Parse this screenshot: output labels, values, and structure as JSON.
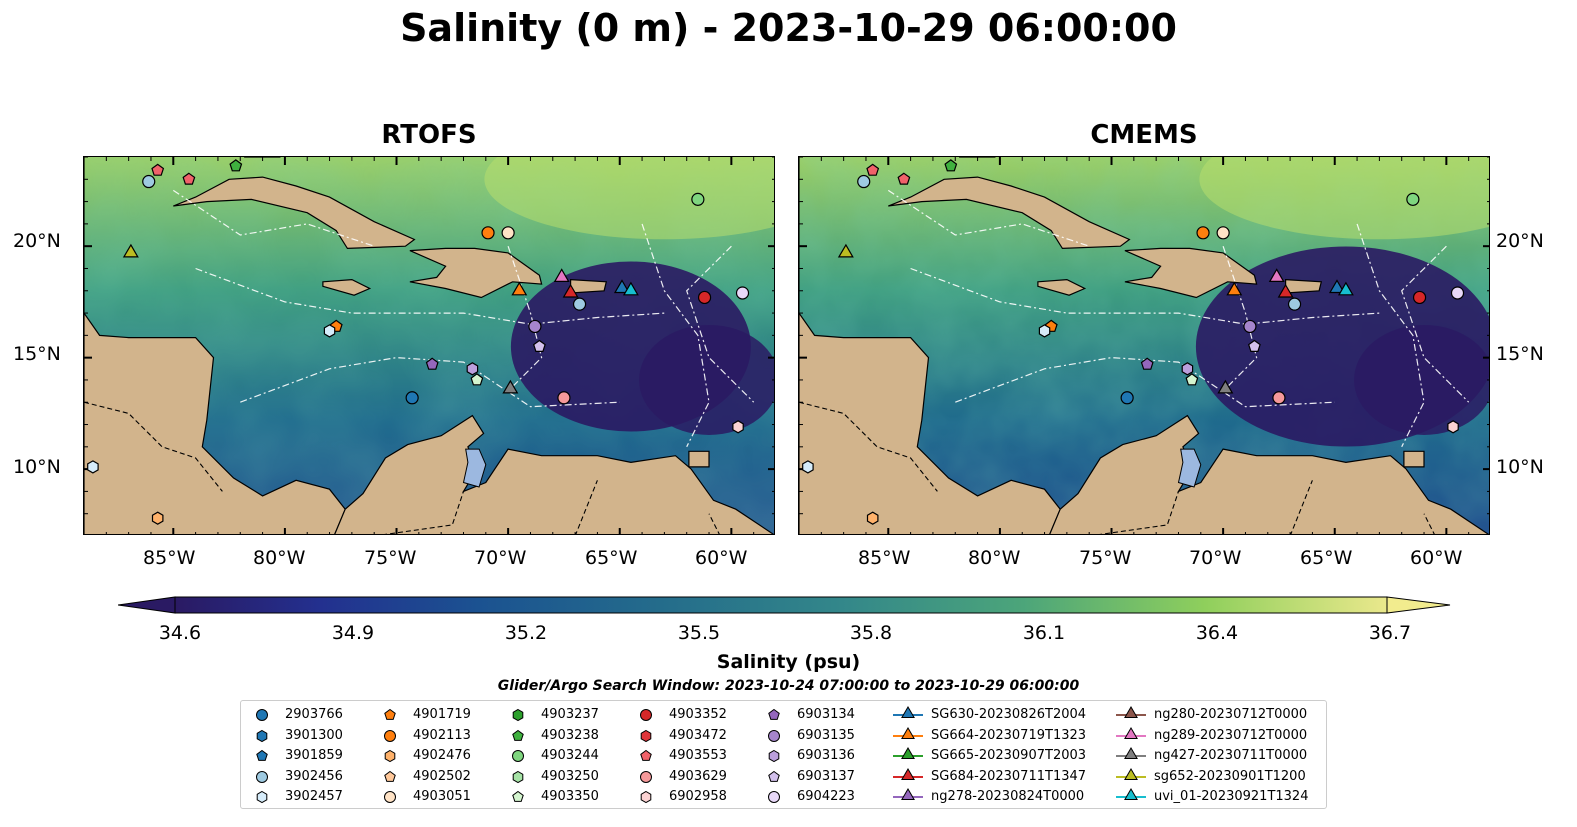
{
  "suptitle": "Salinity (0 m) - 2023-10-29 06:00:00",
  "panels": [
    {
      "title": "RTOFS"
    },
    {
      "title": "CMEMS"
    }
  ],
  "lon_ticks": [
    "85°W",
    "80°W",
    "75°W",
    "70°W",
    "65°W",
    "60°W"
  ],
  "lat_ticks": [
    "20°N",
    "15°N",
    "10°N"
  ],
  "map_extent": {
    "lon": [
      -89,
      -58
    ],
    "lat": [
      7,
      24
    ]
  },
  "colorbar": {
    "label": "Salinity (psu)",
    "ticks": [
      "34.6",
      "34.9",
      "35.2",
      "35.5",
      "35.8",
      "36.1",
      "36.4",
      "36.7"
    ],
    "range": [
      34.6,
      36.7
    ],
    "cmap": "haline"
  },
  "search_window": "Glider/Argo Search Window: 2023-10-24 07:00:00 to 2023-10-29 06:00:00",
  "legend": {
    "columns": [
      [
        {
          "id": "2903766",
          "marker": "circle",
          "color": "#1f77b4"
        },
        {
          "id": "3901300",
          "marker": "hexagon",
          "color": "#1f77b4"
        },
        {
          "id": "3901859",
          "marker": "pentagon",
          "color": "#1f77b4"
        },
        {
          "id": "3902456",
          "marker": "circle",
          "color": "#9ecae1"
        },
        {
          "id": "3902457",
          "marker": "hexagon",
          "color": "#d6ecfa"
        }
      ],
      [
        {
          "id": "4901719",
          "marker": "pentagon",
          "color": "#ff7f0e"
        },
        {
          "id": "4902113",
          "marker": "circle",
          "color": "#ff7f0e"
        },
        {
          "id": "4902476",
          "marker": "hexagon",
          "color": "#ffb26b"
        },
        {
          "id": "4902502",
          "marker": "pentagon",
          "color": "#ffc89a"
        },
        {
          "id": "4903051",
          "marker": "circle",
          "color": "#ffe3c6"
        }
      ],
      [
        {
          "id": "4903237",
          "marker": "hexagon",
          "color": "#2ca02c"
        },
        {
          "id": "4903238",
          "marker": "pentagon",
          "color": "#3fb13f"
        },
        {
          "id": "4903244",
          "marker": "circle",
          "color": "#7fd67f"
        },
        {
          "id": "4903250",
          "marker": "hexagon",
          "color": "#a6e3a6"
        },
        {
          "id": "4903350",
          "marker": "pentagon",
          "color": "#d4f5cf"
        }
      ],
      [
        {
          "id": "4903352",
          "marker": "circle",
          "color": "#d62728"
        },
        {
          "id": "4903472",
          "marker": "hexagon",
          "color": "#e0353a"
        },
        {
          "id": "4903553",
          "marker": "pentagon",
          "color": "#f0626a"
        },
        {
          "id": "4903629",
          "marker": "circle",
          "color": "#f5999a"
        },
        {
          "id": "6902958",
          "marker": "hexagon",
          "color": "#fbd2d2"
        }
      ],
      [
        {
          "id": "6903134",
          "marker": "pentagon",
          "color": "#9467bd"
        },
        {
          "id": "6903135",
          "marker": "circle",
          "color": "#a685cc"
        },
        {
          "id": "6903136",
          "marker": "hexagon",
          "color": "#bb9fdc"
        },
        {
          "id": "6903137",
          "marker": "pentagon",
          "color": "#d3c0ec"
        },
        {
          "id": "6904223",
          "marker": "circle",
          "color": "#e8d8f8"
        }
      ],
      [
        {
          "id": "SG630-20230826T2004",
          "marker": "triangle",
          "color": "#1f77b4"
        },
        {
          "id": "SG664-20230719T1323",
          "marker": "triangle",
          "color": "#ff7f0e"
        },
        {
          "id": "SG665-20230907T2003",
          "marker": "triangle",
          "color": "#2ca02c"
        },
        {
          "id": "SG684-20230711T1347",
          "marker": "triangle",
          "color": "#d62728"
        },
        {
          "id": "ng278-20230824T0000",
          "marker": "triangle",
          "color": "#9467bd"
        }
      ],
      [
        {
          "id": "ng280-20230712T0000",
          "marker": "triangle",
          "color": "#8c564b"
        },
        {
          "id": "ng289-20230712T0000",
          "marker": "triangle",
          "color": "#e377c2"
        },
        {
          "id": "ng427-20230711T0000",
          "marker": "triangle",
          "color": "#7f7f7f"
        },
        {
          "id": "sg652-20230901T1200",
          "marker": "triangle",
          "color": "#bcbd22"
        },
        {
          "id": "uvi_01-20230921T1324",
          "marker": "triangle",
          "color": "#17becf"
        }
      ]
    ]
  },
  "platforms": [
    {
      "id": "4903553",
      "lon": -85.7,
      "lat": 23.4
    },
    {
      "id": "3902456",
      "lon": -86.1,
      "lat": 22.9
    },
    {
      "id": "4903553",
      "lon": -84.3,
      "lat": 23.0
    },
    {
      "id": "4903238",
      "lon": -82.2,
      "lat": 23.6
    },
    {
      "id": "4903244",
      "lon": -61.5,
      "lat": 22.1
    },
    {
      "id": "sg652-20230901T1200",
      "lon": -86.9,
      "lat": 19.7
    },
    {
      "id": "4902113",
      "lon": -70.9,
      "lat": 20.6
    },
    {
      "id": "4903051",
      "lon": -70.0,
      "lat": 20.6
    },
    {
      "id": "ng289-20230712T0000",
      "lon": -67.6,
      "lat": 18.6
    },
    {
      "id": "SG664-20230719T1323",
      "lon": -69.5,
      "lat": 18.0
    },
    {
      "id": "SG684-20230711T1347",
      "lon": -67.2,
      "lat": 17.9
    },
    {
      "id": "3902456",
      "lon": -66.8,
      "lat": 17.4
    },
    {
      "id": "SG630-20230826T2004",
      "lon": -64.9,
      "lat": 18.1
    },
    {
      "id": "uvi_01-20230921T1324",
      "lon": -64.5,
      "lat": 18.0
    },
    {
      "id": "4903352",
      "lon": -61.2,
      "lat": 17.7
    },
    {
      "id": "6904223",
      "lon": -59.5,
      "lat": 17.9
    },
    {
      "id": "4901719",
      "lon": -77.7,
      "lat": 16.4
    },
    {
      "id": "3902457",
      "lon": -78.0,
      "lat": 16.2
    },
    {
      "id": "6903135",
      "lon": -68.8,
      "lat": 16.4
    },
    {
      "id": "6903137",
      "lon": -68.6,
      "lat": 15.5
    },
    {
      "id": "6903134",
      "lon": -73.4,
      "lat": 14.7
    },
    {
      "id": "6903136",
      "lon": -71.6,
      "lat": 14.5
    },
    {
      "id": "4903350",
      "lon": -71.4,
      "lat": 14.0
    },
    {
      "id": "ng427-20230711T0000",
      "lon": -69.9,
      "lat": 13.6
    },
    {
      "id": "2903766",
      "lon": -74.3,
      "lat": 13.2
    },
    {
      "id": "4903629",
      "lon": -67.5,
      "lat": 13.2
    },
    {
      "id": "6902958",
      "lon": -59.7,
      "lat": 11.9
    },
    {
      "id": "3902457",
      "lon": -88.6,
      "lat": 10.1
    },
    {
      "id": "4902476",
      "lon": -85.7,
      "lat": 7.8
    }
  ]
}
